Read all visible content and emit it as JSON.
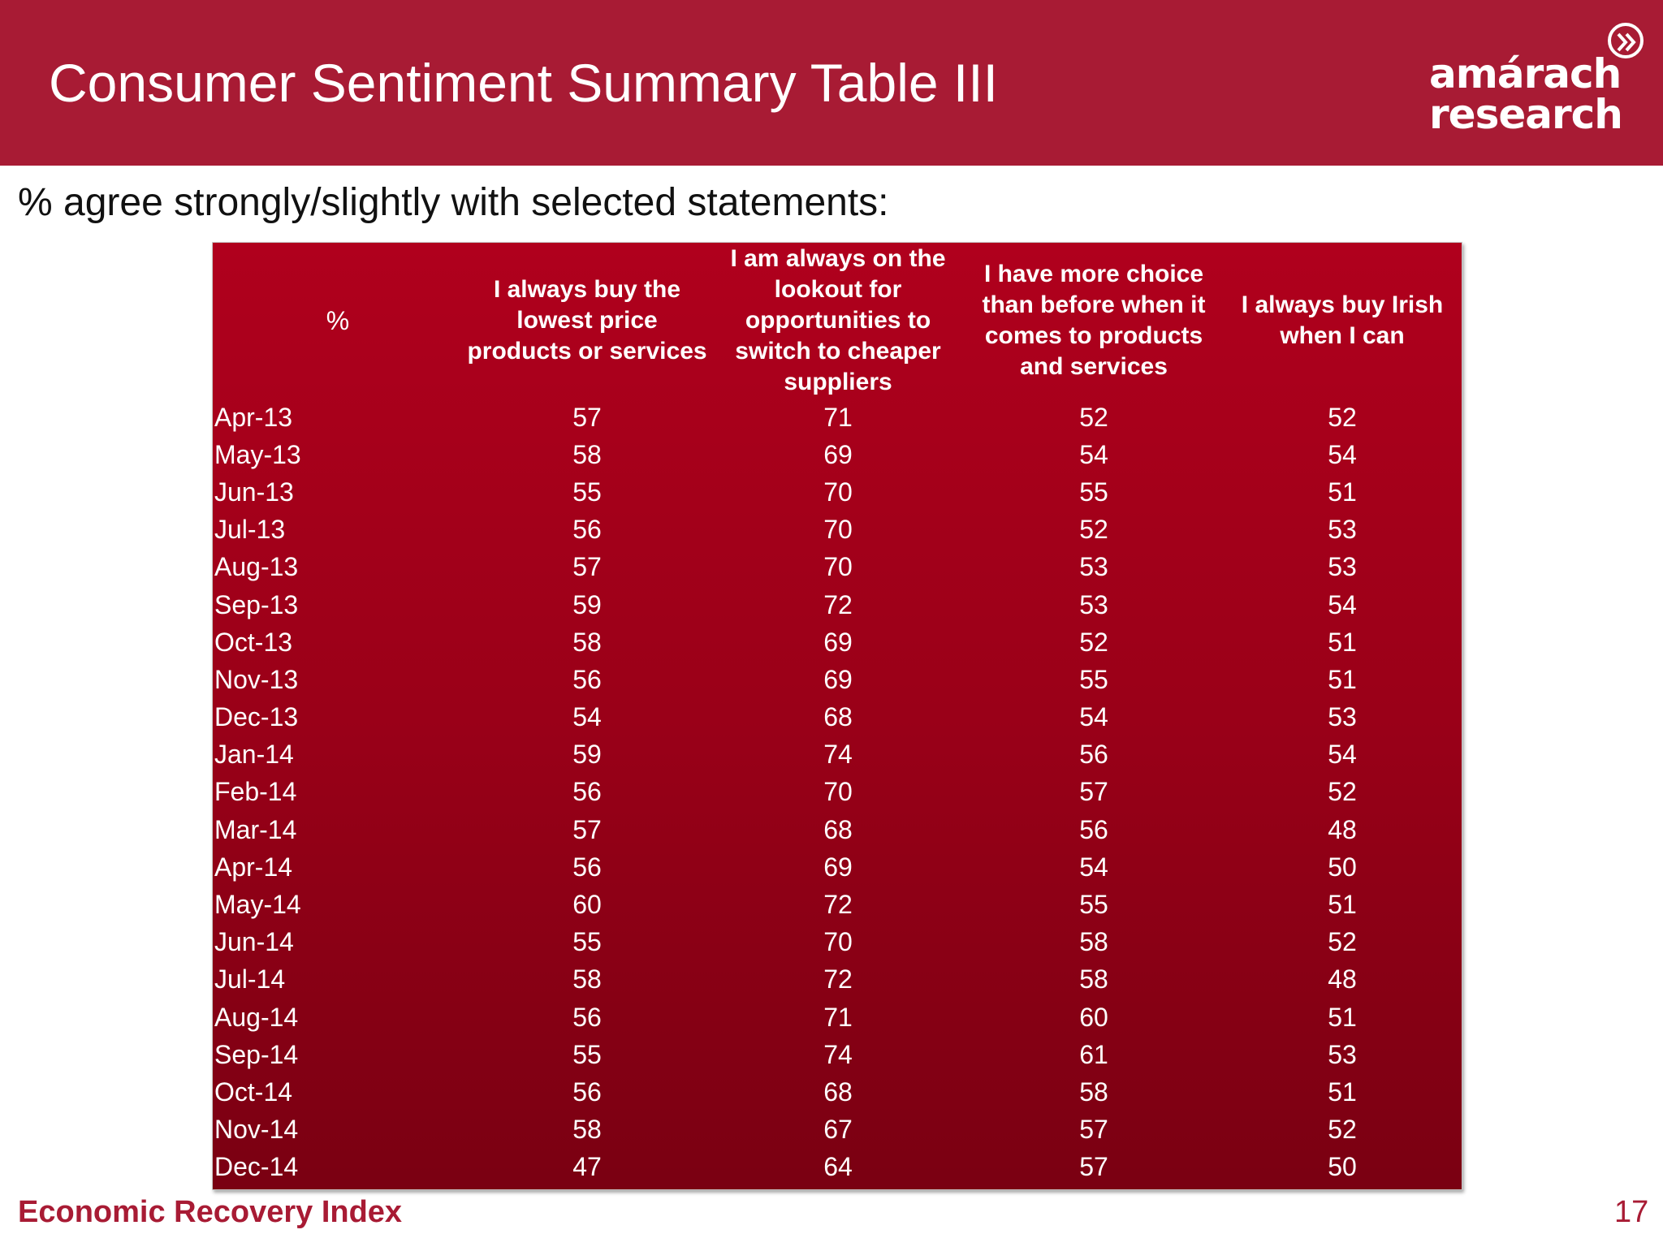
{
  "header": {
    "title": "Consumer Sentiment Summary Table III",
    "logo": {
      "line1": "amárach",
      "line2": "research",
      "icon": "chevron-right-circle-icon"
    }
  },
  "subtitle": "% agree strongly/slightly with selected statements:",
  "table": {
    "corner": "%",
    "columns": [
      "I always buy the lowest price products or services",
      "I am always on the lookout for opportunities to switch to cheaper suppliers",
      "I have more choice than before when it comes to products and services",
      "I always buy Irish when I can"
    ],
    "rows": [
      {
        "month": "Apr-13",
        "values": [
          "57",
          "71",
          "52",
          "52"
        ]
      },
      {
        "month": "May-13",
        "values": [
          "58",
          "69",
          "54",
          "54"
        ]
      },
      {
        "month": "Jun-13",
        "values": [
          "55",
          "70",
          "55",
          "51"
        ]
      },
      {
        "month": "Jul-13",
        "values": [
          "56",
          "70",
          "52",
          "53"
        ]
      },
      {
        "month": "Aug-13",
        "values": [
          "57",
          "70",
          "53",
          "53"
        ]
      },
      {
        "month": "Sep-13",
        "values": [
          "59",
          "72",
          "53",
          "54"
        ]
      },
      {
        "month": "Oct-13",
        "values": [
          "58",
          "69",
          "52",
          "51"
        ]
      },
      {
        "month": "Nov-13",
        "values": [
          "56",
          "69",
          "55",
          "51"
        ]
      },
      {
        "month": "Dec-13",
        "values": [
          "54",
          "68",
          "54",
          "53"
        ]
      },
      {
        "month": "Jan-14",
        "values": [
          "59",
          "74",
          "56",
          "54"
        ]
      },
      {
        "month": "Feb-14",
        "values": [
          "56",
          "70",
          "57",
          "52"
        ]
      },
      {
        "month": "Mar-14",
        "values": [
          "57",
          "68",
          "56",
          "48"
        ]
      },
      {
        "month": "Apr-14",
        "values": [
          "56",
          "69",
          "54",
          "50"
        ]
      },
      {
        "month": "May-14",
        "values": [
          "60",
          "72",
          "55",
          "51"
        ]
      },
      {
        "month": "Jun-14",
        "values": [
          "55",
          "70",
          "58",
          "52"
        ]
      },
      {
        "month": "Jul-14",
        "values": [
          "58",
          "72",
          "58",
          "48"
        ]
      },
      {
        "month": "Aug-14",
        "values": [
          "56",
          "71",
          "60",
          "51"
        ]
      },
      {
        "month": "Sep-14",
        "values": [
          "55",
          "74",
          "61",
          "53"
        ]
      },
      {
        "month": "Oct-14",
        "values": [
          "56",
          "68",
          "58",
          "51"
        ]
      },
      {
        "month": "Nov-14",
        "values": [
          "58",
          "67",
          "57",
          "52"
        ]
      },
      {
        "month": "Dec-14",
        "values": [
          "47",
          "64",
          "57",
          "50"
        ]
      }
    ]
  },
  "footer": {
    "left": "Economic Recovery Index",
    "page_number": "17"
  },
  "colors": {
    "brand_red": "#a81b34",
    "table_top": "#b0001d",
    "table_bottom": "#7a0012",
    "text_on_red": "#ffffff"
  }
}
